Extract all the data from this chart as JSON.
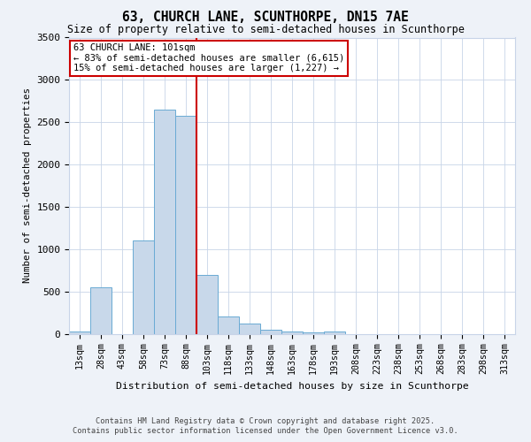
{
  "title": "63, CHURCH LANE, SCUNTHORPE, DN15 7AE",
  "subtitle": "Size of property relative to semi-detached houses in Scunthorpe",
  "xlabel": "Distribution of semi-detached houses by size in Scunthorpe",
  "ylabel": "Number of semi-detached properties",
  "bin_labels": [
    "13sqm",
    "28sqm",
    "43sqm",
    "58sqm",
    "73sqm",
    "88sqm",
    "103sqm",
    "118sqm",
    "133sqm",
    "148sqm",
    "163sqm",
    "178sqm",
    "193sqm",
    "208sqm",
    "223sqm",
    "238sqm",
    "253sqm",
    "268sqm",
    "283sqm",
    "298sqm",
    "313sqm"
  ],
  "bar_values": [
    30,
    550,
    0,
    1100,
    2650,
    2580,
    700,
    200,
    115,
    50,
    30,
    12,
    30,
    0,
    0,
    0,
    0,
    0,
    0,
    0,
    0
  ],
  "bar_color": "#c8d8ea",
  "bar_edge_color": "#6aaad4",
  "property_line_index": 6,
  "property_line_color": "#cc0000",
  "annotation_title": "63 CHURCH LANE: 101sqm",
  "annotation_line1": "← 83% of semi-detached houses are smaller (6,615)",
  "annotation_line2": "15% of semi-detached houses are larger (1,227) →",
  "annotation_box_color": "#cc0000",
  "ylim": [
    0,
    3500
  ],
  "yticks": [
    0,
    500,
    1000,
    1500,
    2000,
    2500,
    3000,
    3500
  ],
  "footer_line1": "Contains HM Land Registry data © Crown copyright and database right 2025.",
  "footer_line2": "Contains public sector information licensed under the Open Government Licence v3.0.",
  "background_color": "#eef2f8",
  "plot_background": "#ffffff",
  "grid_color": "#c8d4e8"
}
